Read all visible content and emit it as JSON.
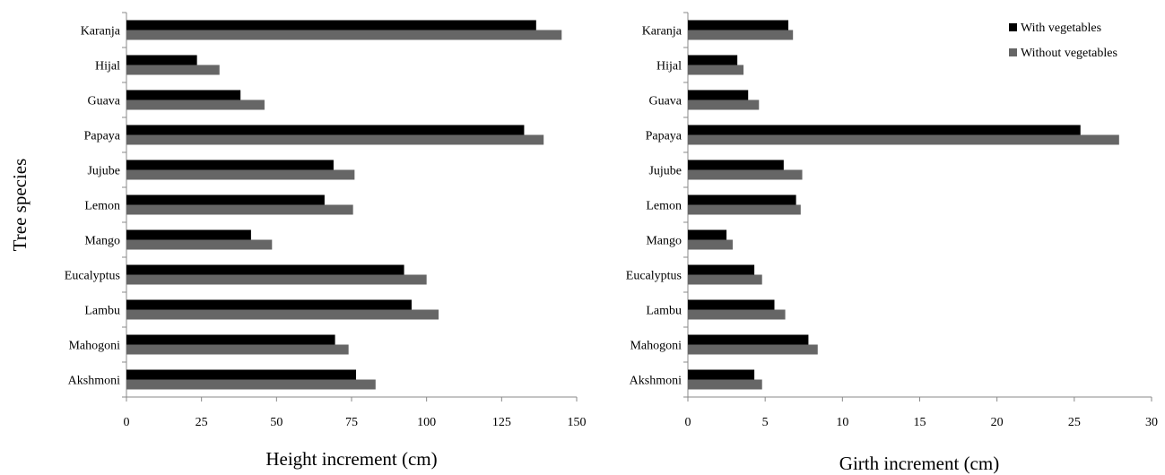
{
  "chart_data": [
    {
      "type": "bar",
      "orientation": "horizontal",
      "ylabel": "Tree species",
      "xlabel": "Height increment (cm)",
      "xlim": [
        0,
        150
      ],
      "xticks": [
        "0",
        "25",
        "50",
        "75",
        "100",
        "125",
        "150"
      ],
      "categories": [
        "Akshmoni",
        "Mahogoni",
        "Lambu",
        "Eucalyptus",
        "Mango",
        "Lemon",
        "Jujube",
        "Papaya",
        "Guava",
        "Hijal",
        "Karanja"
      ],
      "series": [
        {
          "name": "With vegetables",
          "color": "#000000",
          "values": [
            76.5,
            69.5,
            95,
            92.5,
            41.5,
            66,
            69,
            132.5,
            38,
            23.5,
            136.5
          ]
        },
        {
          "name": "Without vegetables",
          "color": "#666666",
          "values": [
            83,
            74,
            104,
            100,
            48.5,
            75.5,
            76,
            139,
            46,
            31,
            145
          ]
        }
      ]
    },
    {
      "type": "bar",
      "orientation": "horizontal",
      "xlabel": "Girth increment (cm)",
      "xlim": [
        0,
        30
      ],
      "xticks": [
        "0",
        "5",
        "10",
        "15",
        "20",
        "25",
        "30"
      ],
      "categories": [
        "Akshmoni",
        "Mahogoni",
        "Lambu",
        "Eucalyptus",
        "Mango",
        "Lemon",
        "Jujube",
        "Papaya",
        "Guava",
        "Hijal",
        "Karanja"
      ],
      "legend_position": "top-right",
      "series": [
        {
          "name": "With vegetables",
          "color": "#000000",
          "values": [
            4.3,
            7.8,
            5.6,
            4.3,
            2.5,
            7.0,
            6.2,
            25.4,
            3.9,
            3.2,
            6.5
          ]
        },
        {
          "name": "Without vegetables",
          "color": "#666666",
          "values": [
            4.8,
            8.4,
            6.3,
            4.8,
            2.9,
            7.3,
            7.4,
            27.9,
            4.6,
            3.6,
            6.8
          ]
        }
      ]
    }
  ]
}
